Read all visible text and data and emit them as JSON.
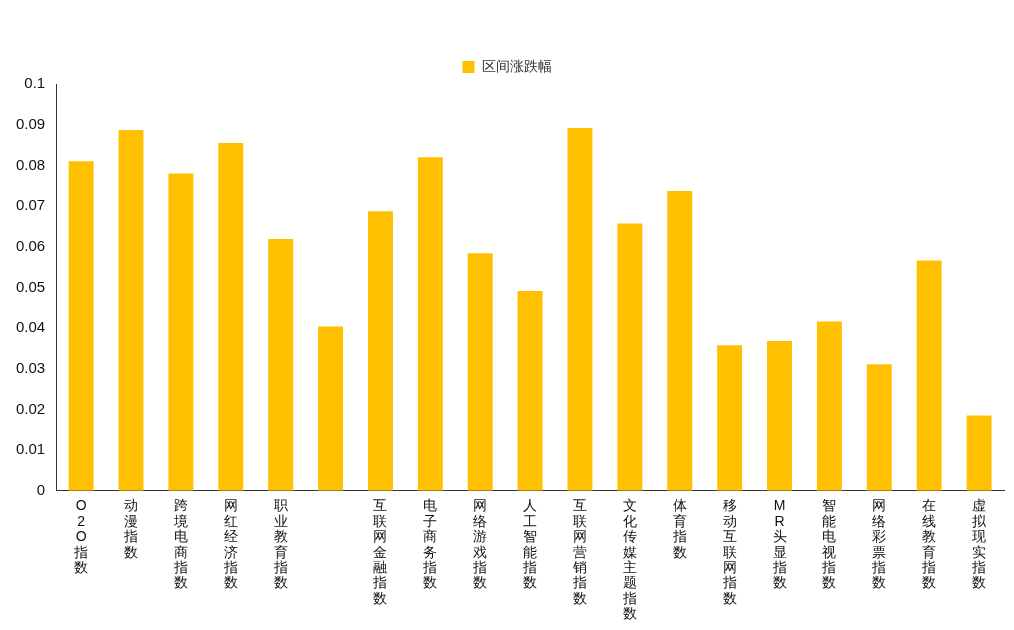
{
  "chart_data": {
    "type": "bar",
    "categories": [
      "O2O指数",
      "动漫指数",
      "跨境电商指数",
      "网红经济指数",
      "职业教育指数",
      null,
      "互联网金融指数",
      "电子商务指数",
      "网络游戏指数",
      "人工智能指数",
      "互联网营销指数",
      "文化传媒主题指数",
      "体育指数",
      "移动互联网指数",
      "MR头显指数",
      "智能电视指数",
      "网络彩票指数",
      "在线教育指数",
      "虚拟现实指数"
    ],
    "series": [
      {
        "name": "区间涨跌幅",
        "color": "#ffc000",
        "values": [
          0.081,
          0.0887,
          0.078,
          0.0855,
          0.0619,
          0.0404,
          0.0687,
          0.082,
          0.0584,
          0.0491,
          0.0892,
          0.0657,
          0.0737,
          0.0358,
          0.0368,
          0.0416,
          0.0311,
          0.0566,
          0.0185
        ]
      }
    ],
    "ylim": [
      0,
      0.1
    ],
    "yticks": [
      0,
      0.01,
      0.02,
      0.03,
      0.04,
      0.05,
      0.06,
      0.07,
      0.08,
      0.09,
      0.1
    ],
    "grid": false,
    "legend": "top"
  }
}
